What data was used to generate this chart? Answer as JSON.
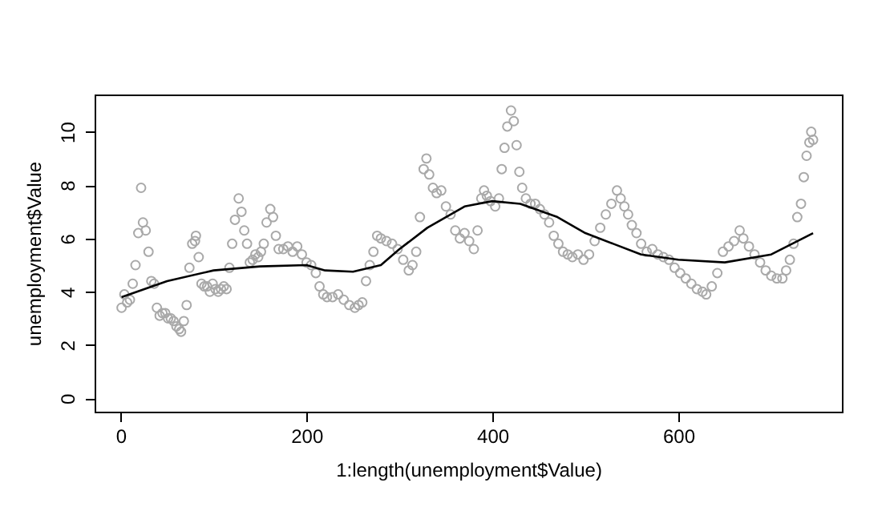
{
  "chart_data": {
    "type": "scatter",
    "xlabel": "1:length(unemployment$Value)",
    "ylabel": "unemployment$Value",
    "xlim": [
      -28,
      776
    ],
    "ylim": [
      -0.5,
      11.4
    ],
    "xticks": [
      0,
      200,
      400,
      600
    ],
    "yticks": [
      0,
      2,
      4,
      6,
      8,
      10
    ],
    "grid": false,
    "marker": "circle",
    "series": [
      {
        "color": "#a9a9a9",
        "x": [
          1,
          4,
          7,
          10,
          13,
          16,
          19,
          22,
          24,
          27,
          30,
          33,
          36,
          39,
          42,
          45,
          48,
          51,
          54,
          57,
          60,
          63,
          65,
          68,
          71,
          74,
          77,
          80,
          81,
          84,
          87,
          90,
          93,
          96,
          99,
          102,
          105,
          108,
          111,
          114,
          117,
          120,
          123,
          127,
          130,
          133,
          136,
          139,
          142,
          145,
          148,
          151,
          154,
          157,
          161,
          164,
          167,
          170,
          175,
          180,
          185,
          190,
          195,
          200,
          205,
          210,
          214,
          218,
          222,
          228,
          234,
          240,
          246,
          252,
          256,
          260,
          264,
          268,
          272,
          276,
          280,
          286,
          292,
          298,
          304,
          310,
          314,
          318,
          322,
          326,
          329,
          332,
          336,
          340,
          345,
          350,
          355,
          360,
          365,
          370,
          375,
          380,
          384,
          388,
          391,
          394,
          398,
          403,
          407,
          410,
          413,
          416,
          420,
          423,
          426,
          429,
          432,
          436,
          441,
          446,
          451,
          456,
          461,
          466,
          471,
          476,
          481,
          486,
          492,
          498,
          504,
          510,
          516,
          522,
          528,
          534,
          538,
          542,
          546,
          550,
          555,
          560,
          566,
          572,
          578,
          584,
          590,
          596,
          602,
          608,
          614,
          620,
          626,
          630,
          636,
          642,
          648,
          654,
          660,
          666,
          670,
          676,
          682,
          688,
          694,
          700,
          706,
          712,
          716,
          720,
          724,
          728,
          732,
          735,
          738,
          741,
          743,
          745
        ],
        "values": [
          3.4,
          3.9,
          3.6,
          3.7,
          4.3,
          5.0,
          6.2,
          7.9,
          6.6,
          6.3,
          5.5,
          4.4,
          4.3,
          3.4,
          3.1,
          3.2,
          3.2,
          3.0,
          3.0,
          2.9,
          2.7,
          2.6,
          2.5,
          2.9,
          3.5,
          4.9,
          5.8,
          5.9,
          6.1,
          5.3,
          4.3,
          4.2,
          4.2,
          4.0,
          4.3,
          4.1,
          4.0,
          4.1,
          4.2,
          4.1,
          4.9,
          5.8,
          6.7,
          7.5,
          7.0,
          6.3,
          5.8,
          5.1,
          5.2,
          5.4,
          5.3,
          5.5,
          5.8,
          6.6,
          7.1,
          6.8,
          6.1,
          5.6,
          5.6,
          5.7,
          5.5,
          5.7,
          5.4,
          5.1,
          5.0,
          4.7,
          4.2,
          3.9,
          3.8,
          3.8,
          3.9,
          3.7,
          3.5,
          3.4,
          3.5,
          3.6,
          4.4,
          5.0,
          5.5,
          6.1,
          6.0,
          5.9,
          5.8,
          5.6,
          5.2,
          4.8,
          5.0,
          5.5,
          6.8,
          8.6,
          9.0,
          8.4,
          7.9,
          7.7,
          7.8,
          7.2,
          6.9,
          6.3,
          6.0,
          6.2,
          5.9,
          5.6,
          6.3,
          7.5,
          7.8,
          7.6,
          7.4,
          7.2,
          7.5,
          8.6,
          9.4,
          10.2,
          10.8,
          10.4,
          9.5,
          8.5,
          7.9,
          7.5,
          7.3,
          7.3,
          7.1,
          6.9,
          6.6,
          6.1,
          5.8,
          5.5,
          5.4,
          5.3,
          5.4,
          5.2,
          5.4,
          5.9,
          6.4,
          6.9,
          7.3,
          7.8,
          7.5,
          7.2,
          6.9,
          6.5,
          6.2,
          5.8,
          5.5,
          5.6,
          5.4,
          5.3,
          5.2,
          4.9,
          4.7,
          4.5,
          4.3,
          4.1,
          4.0,
          3.9,
          4.2,
          4.7,
          5.5,
          5.7,
          5.9,
          6.3,
          6.0,
          5.7,
          5.4,
          5.1,
          4.8,
          4.6,
          4.5,
          4.5,
          4.8,
          5.2,
          5.8,
          6.8,
          7.3,
          8.3,
          9.1,
          9.6,
          10.0,
          9.7
        ]
      },
      {
        "type": "line",
        "color": "#000000",
        "marker": "none",
        "x": [
          1,
          50,
          100,
          150,
          200,
          220,
          250,
          280,
          300,
          330,
          370,
          400,
          430,
          470,
          500,
          530,
          560,
          600,
          650,
          700,
          745
        ],
        "values": [
          3.8,
          4.4,
          4.8,
          4.95,
          5.0,
          4.8,
          4.75,
          5.0,
          5.6,
          6.4,
          7.2,
          7.4,
          7.3,
          6.8,
          6.2,
          5.8,
          5.4,
          5.2,
          5.1,
          5.4,
          6.2
        ]
      }
    ]
  }
}
